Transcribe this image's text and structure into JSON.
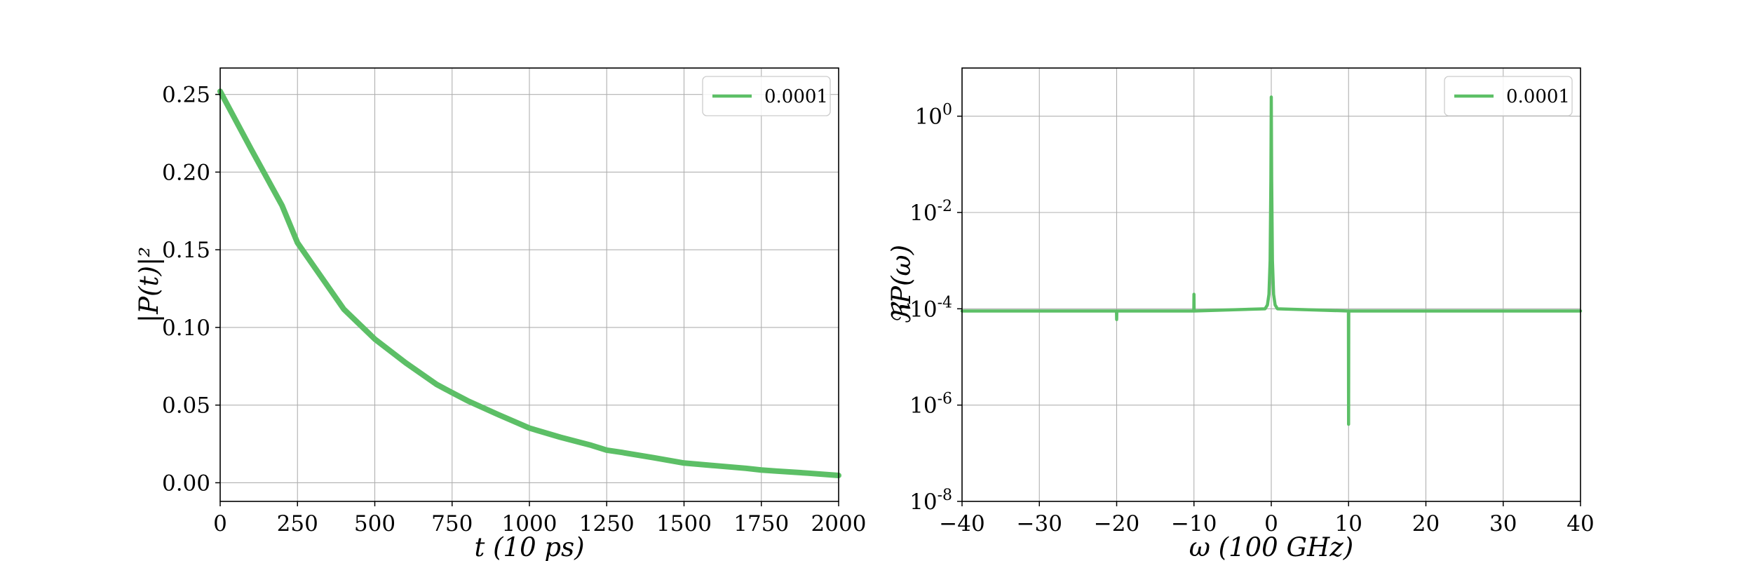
{
  "colors": {
    "series": "#5cbf66",
    "grid": "#b0b0b0",
    "frame": "#000000"
  },
  "chart_data": [
    {
      "type": "line",
      "xlabel": "t (10 ps)",
      "ylabel": "|P(t)|²",
      "xlim": [
        0,
        2000
      ],
      "ylim": [
        -0.012,
        0.267
      ],
      "xticks": [
        0,
        250,
        500,
        750,
        1000,
        1250,
        1500,
        1750,
        2000
      ],
      "xtick_labels": [
        "0",
        "250",
        "500",
        "750",
        "1000",
        "1250",
        "1500",
        "1750",
        "2000"
      ],
      "yticks": [
        0.0,
        0.05,
        0.1,
        0.15,
        0.2,
        0.25
      ],
      "ytick_labels": [
        "0.00",
        "0.05",
        "0.10",
        "0.15",
        "0.20",
        "0.25"
      ],
      "grid": true,
      "legend_position": "top-right",
      "series": [
        {
          "name": "0.0001",
          "x": [
            0,
            100,
            200,
            250,
            300,
            400,
            500,
            600,
            700,
            750,
            800,
            900,
            1000,
            1100,
            1200,
            1250,
            1300,
            1400,
            1500,
            1600,
            1700,
            1750,
            1800,
            1900,
            2000
          ],
          "y": [
            0.252,
            0.2148,
            0.1785,
            0.1545,
            0.1402,
            0.1117,
            0.0925,
            0.0772,
            0.0633,
            0.058,
            0.0528,
            0.0438,
            0.0352,
            0.0293,
            0.0241,
            0.021,
            0.0195,
            0.0162,
            0.0127,
            0.011,
            0.0093,
            0.0082,
            0.0075,
            0.0062,
            0.0047
          ]
        }
      ]
    },
    {
      "type": "line",
      "xlabel": "ω (100 GHz)",
      "ylabel": "ℜP(ω)",
      "xlim": [
        -40,
        40
      ],
      "ylim": [
        1e-08,
        10
      ],
      "yscale": "log",
      "xticks": [
        -40,
        -30,
        -20,
        -10,
        0,
        10,
        20,
        30,
        40
      ],
      "xtick_labels": [
        "−40",
        "−30",
        "−20",
        "−10",
        "0",
        "10",
        "20",
        "30",
        "40"
      ],
      "yticks": [
        1e-08,
        1e-06,
        0.0001,
        0.01,
        1
      ],
      "ytick_labels": [
        {
          "base": "10",
          "exp": "-8"
        },
        {
          "base": "10",
          "exp": "-6"
        },
        {
          "base": "10",
          "exp": "-4"
        },
        {
          "base": "10",
          "exp": "-2"
        },
        {
          "base": "10",
          "exp": "0"
        }
      ],
      "grid": true,
      "legend_position": "top-right",
      "series": [
        {
          "name": "0.0001",
          "x": [
            -40,
            -20.02,
            -20,
            -19.98,
            -10.02,
            -10,
            -9.98,
            -0.8,
            -0.5,
            -0.3,
            -0.15,
            -0.05,
            0,
            0.05,
            0.15,
            0.3,
            0.5,
            0.8,
            9.98,
            10,
            10.02,
            40
          ],
          "y": [
            9e-05,
            9e-05,
            6e-05,
            9e-05,
            9e-05,
            0.0002,
            9e-05,
            0.0001,
            0.00012,
            0.0002,
            0.001,
            0.05,
            2.5,
            0.05,
            0.001,
            0.0002,
            0.00012,
            0.0001,
            9e-05,
            4e-07,
            9e-05,
            9e-05
          ]
        }
      ]
    }
  ]
}
